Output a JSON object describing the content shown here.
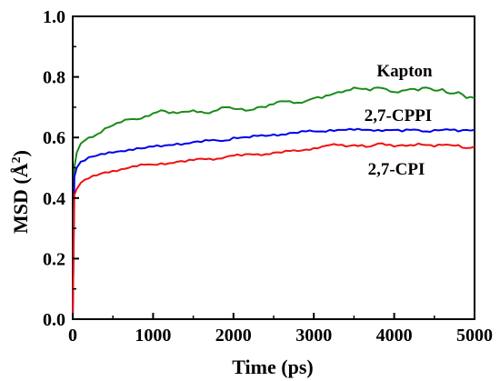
{
  "chart_data": {
    "type": "line",
    "title": "",
    "xlabel": "Time (ps)",
    "ylabel_main": "MSD (Å",
    "ylabel_sup": "2",
    "ylabel_end": ")",
    "xlim": [
      0,
      5000
    ],
    "ylim": [
      0.0,
      1.0
    ],
    "x_ticks": [
      0,
      1000,
      2000,
      3000,
      4000,
      5000
    ],
    "x_tick_labels": [
      "0",
      "1000",
      "2000",
      "3000",
      "4000",
      "5000"
    ],
    "y_ticks": [
      0.0,
      0.2,
      0.4,
      0.6,
      0.8,
      1.0
    ],
    "y_tick_labels": [
      "0.0",
      "0.2",
      "0.4",
      "0.6",
      "0.8",
      "1.0"
    ],
    "grid": false,
    "legend": "inline labels",
    "series": [
      {
        "name": "Kapton",
        "color": "#1a8a1a",
        "x": [
          0,
          20,
          50,
          100,
          200,
          300,
          400,
          500,
          600,
          700,
          800,
          900,
          1000,
          1100,
          1200,
          1300,
          1400,
          1500,
          1600,
          1700,
          1800,
          1900,
          2000,
          2100,
          2200,
          2300,
          2400,
          2500,
          2600,
          2700,
          2800,
          2900,
          3000,
          3100,
          3200,
          3300,
          3400,
          3500,
          3600,
          3700,
          3800,
          3900,
          4000,
          4100,
          4200,
          4300,
          4400,
          4500,
          4600,
          4700,
          4800,
          4900,
          5000
        ],
        "y": [
          0.0,
          0.5,
          0.55,
          0.58,
          0.6,
          0.61,
          0.63,
          0.64,
          0.65,
          0.66,
          0.66,
          0.67,
          0.68,
          0.69,
          0.68,
          0.68,
          0.685,
          0.69,
          0.685,
          0.68,
          0.69,
          0.7,
          0.695,
          0.695,
          0.69,
          0.7,
          0.7,
          0.71,
          0.72,
          0.72,
          0.715,
          0.72,
          0.73,
          0.73,
          0.74,
          0.75,
          0.755,
          0.765,
          0.76,
          0.755,
          0.765,
          0.76,
          0.75,
          0.755,
          0.76,
          0.755,
          0.765,
          0.755,
          0.76,
          0.745,
          0.75,
          0.73,
          0.73
        ]
      },
      {
        "name": "2,7-CPPI",
        "color": "#0000ee",
        "x": [
          0,
          20,
          50,
          100,
          200,
          300,
          400,
          500,
          600,
          700,
          800,
          900,
          1000,
          1100,
          1200,
          1300,
          1400,
          1500,
          1600,
          1700,
          1800,
          1900,
          2000,
          2100,
          2200,
          2300,
          2400,
          2500,
          2600,
          2700,
          2800,
          2900,
          3000,
          3100,
          3200,
          3300,
          3400,
          3500,
          3600,
          3700,
          3800,
          3900,
          4000,
          4100,
          4200,
          4300,
          4400,
          4500,
          4600,
          4700,
          4800,
          4900,
          5000
        ],
        "y": [
          0.0,
          0.47,
          0.5,
          0.52,
          0.535,
          0.54,
          0.545,
          0.55,
          0.555,
          0.56,
          0.565,
          0.565,
          0.57,
          0.57,
          0.575,
          0.58,
          0.58,
          0.585,
          0.585,
          0.59,
          0.59,
          0.59,
          0.6,
          0.6,
          0.6,
          0.605,
          0.605,
          0.61,
          0.61,
          0.615,
          0.615,
          0.62,
          0.62,
          0.62,
          0.625,
          0.625,
          0.625,
          0.625,
          0.625,
          0.625,
          0.625,
          0.625,
          0.625,
          0.62,
          0.625,
          0.625,
          0.62,
          0.625,
          0.625,
          0.625,
          0.62,
          0.625,
          0.625
        ]
      },
      {
        "name": "2,7-CPI",
        "color": "#ee1111",
        "x": [
          0,
          20,
          50,
          100,
          200,
          300,
          400,
          500,
          600,
          700,
          800,
          900,
          1000,
          1100,
          1200,
          1300,
          1400,
          1500,
          1600,
          1700,
          1800,
          1900,
          2000,
          2100,
          2200,
          2300,
          2400,
          2500,
          2600,
          2700,
          2800,
          2900,
          3000,
          3100,
          3200,
          3300,
          3400,
          3500,
          3600,
          3700,
          3800,
          3900,
          4000,
          4100,
          4200,
          4300,
          4400,
          4500,
          4600,
          4700,
          4800,
          4900,
          5000
        ],
        "y": [
          0.0,
          0.41,
          0.43,
          0.45,
          0.465,
          0.475,
          0.485,
          0.49,
          0.495,
          0.5,
          0.505,
          0.51,
          0.51,
          0.515,
          0.515,
          0.52,
          0.52,
          0.525,
          0.53,
          0.53,
          0.53,
          0.535,
          0.54,
          0.54,
          0.545,
          0.545,
          0.545,
          0.55,
          0.55,
          0.555,
          0.555,
          0.56,
          0.565,
          0.57,
          0.575,
          0.575,
          0.57,
          0.575,
          0.575,
          0.57,
          0.58,
          0.575,
          0.57,
          0.575,
          0.575,
          0.58,
          0.575,
          0.57,
          0.575,
          0.575,
          0.575,
          0.565,
          0.57
        ]
      }
    ],
    "annotations": [
      {
        "text": "Kapton",
        "series": "Kapton"
      },
      {
        "text": "2,7-CPPI",
        "series": "2,7-CPPI"
      },
      {
        "text": "2,7-CPI",
        "series": "2,7-CPI"
      }
    ]
  }
}
